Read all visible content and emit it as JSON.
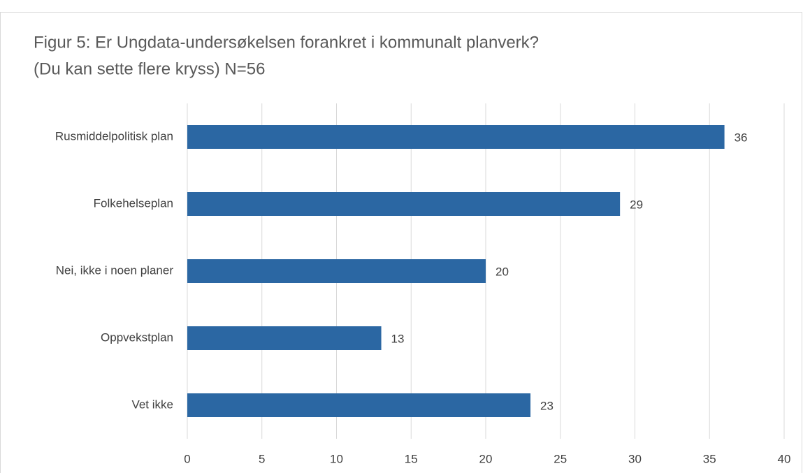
{
  "chart_data": {
    "type": "bar",
    "orientation": "horizontal",
    "title": [
      "Figur 5: Er Ungdata-undersøkelsen forankret i kommunalt planverk?",
      "(Du kan sette flere kryss) N=56"
    ],
    "categories": [
      "Rusmiddelpolitisk plan",
      "Folkehelseplan",
      "Nei, ikke i noen planer",
      "Oppvekstplan",
      "Vet ikke"
    ],
    "values": [
      36,
      29,
      20,
      13,
      23
    ],
    "color": "#2b67a3",
    "xlim": [
      0,
      40
    ],
    "xticks": [
      0,
      5,
      10,
      15,
      20,
      25,
      30,
      35,
      40
    ],
    "grid": true
  }
}
